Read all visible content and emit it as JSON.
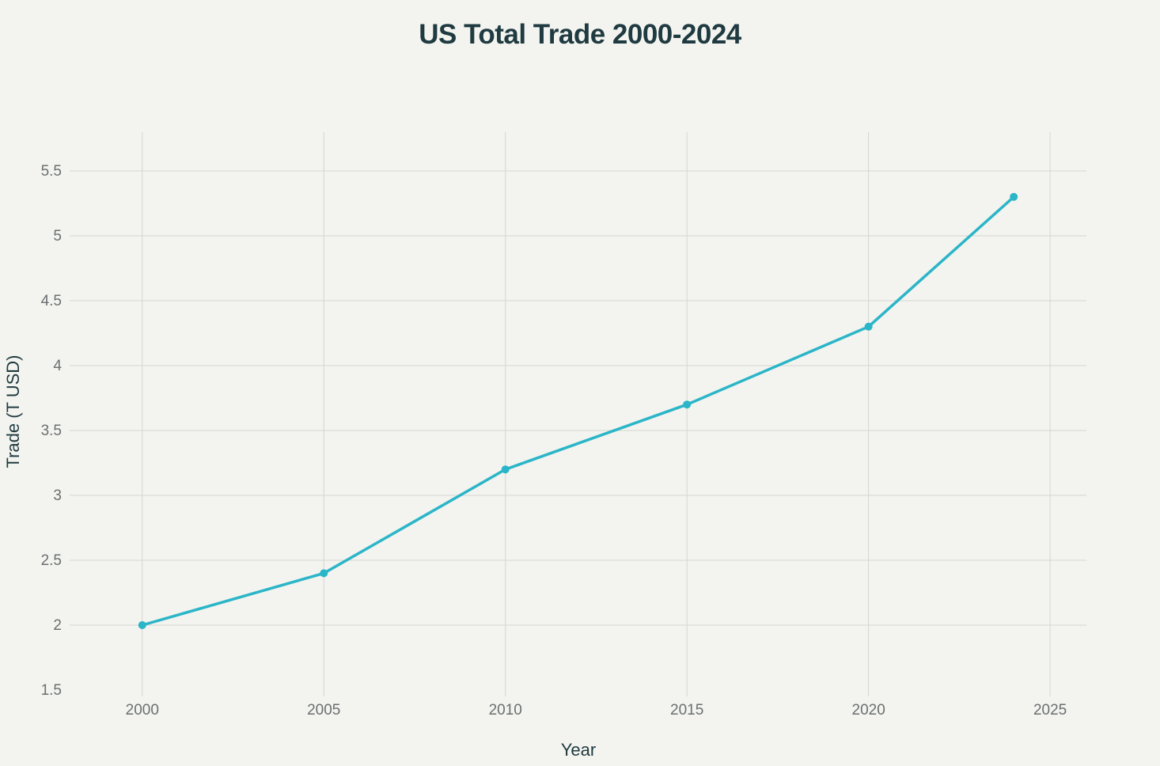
{
  "chart_data": {
    "type": "line",
    "title": "US Total Trade 2000-2024",
    "xlabel": "Year",
    "ylabel": "Trade (T USD)",
    "xlim": [
      1998,
      2026
    ],
    "ylim": [
      1.5,
      5.8
    ],
    "xticks": [
      2000,
      2005,
      2010,
      2015,
      2020,
      2025
    ],
    "xtick_labels": [
      "2000",
      "2005",
      "2010",
      "2015",
      "2020",
      "2025"
    ],
    "yticks": [
      1.5,
      2,
      2.5,
      3,
      3.5,
      4,
      4.5,
      5,
      5.5
    ],
    "ytick_labels": [
      "1.5",
      "2",
      "2.5",
      "3",
      "3.5",
      "4",
      "4.5",
      "5",
      "5.5"
    ],
    "grid": true,
    "series": [
      {
        "name": "US Total Trade",
        "color": "#2bb5c8",
        "x": [
          2000,
          2005,
          2010,
          2015,
          2020,
          2024
        ],
        "values": [
          2.0,
          2.4,
          3.2,
          3.7,
          4.3,
          5.3
        ]
      }
    ]
  }
}
